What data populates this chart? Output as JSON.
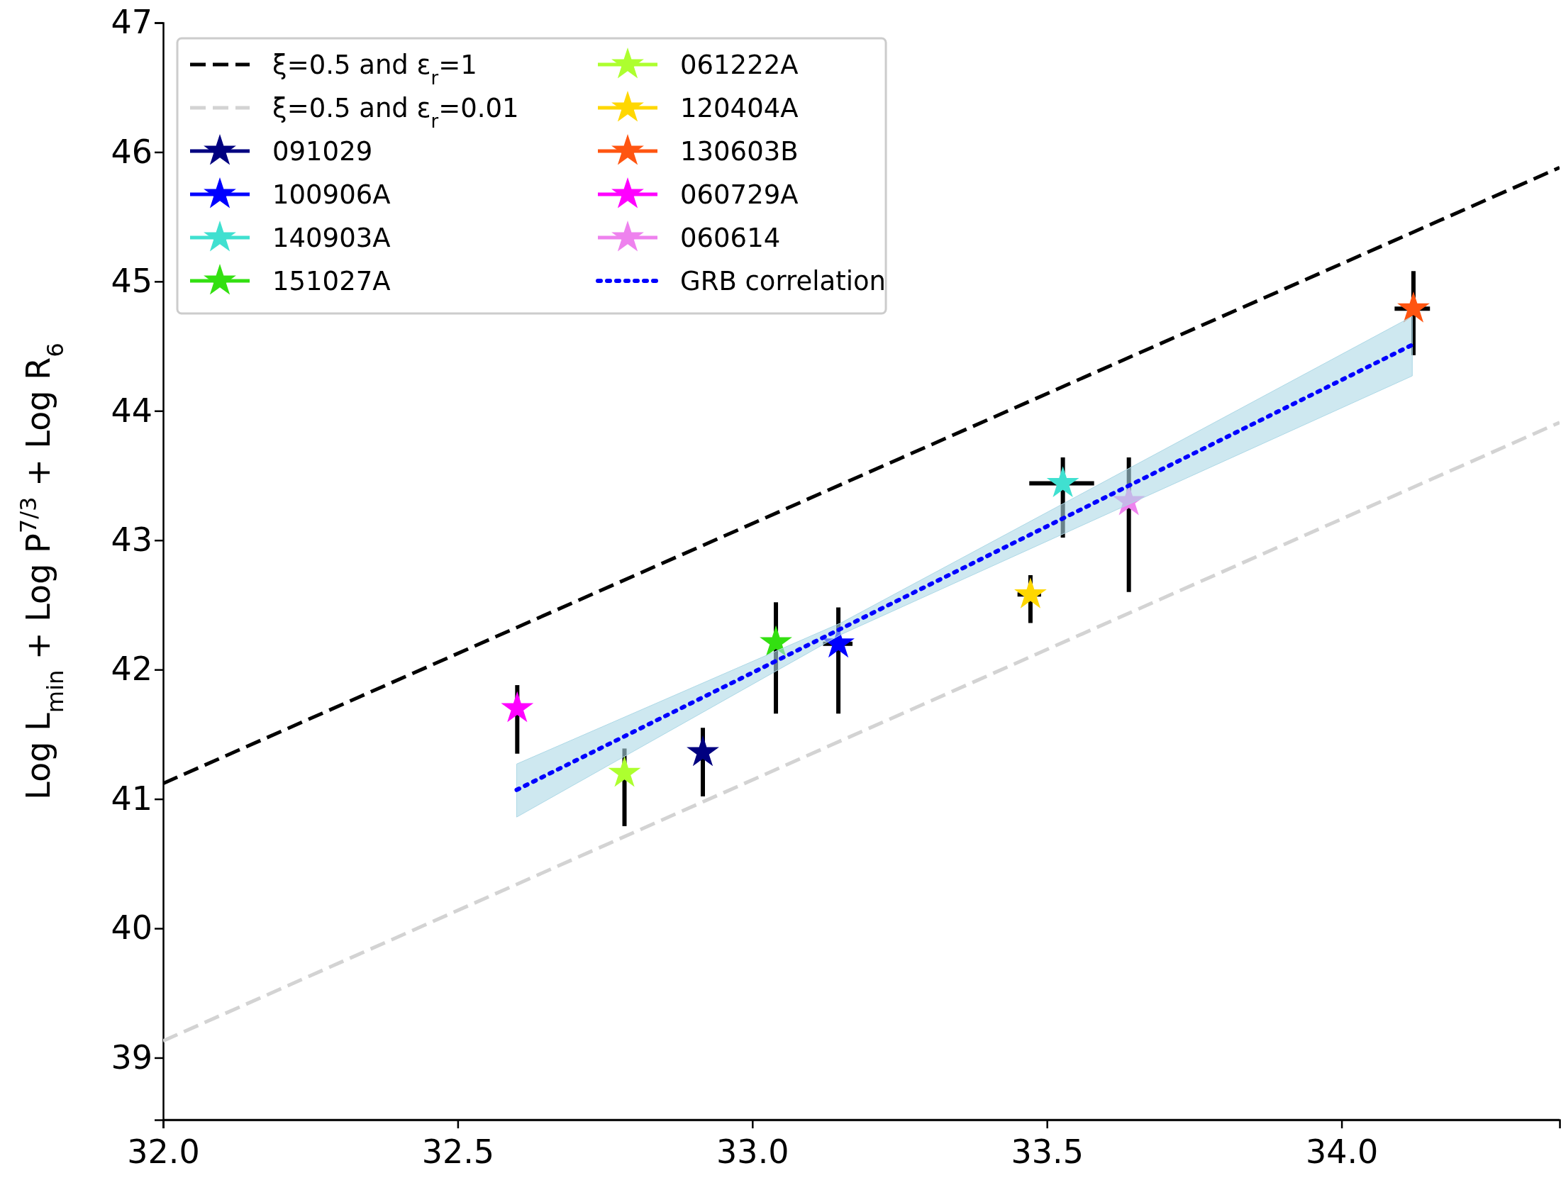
{
  "chart_data": {
    "type": "scatter",
    "ylabel": "Log L$_{min}$ + Log P$^{7/3}$ + Log R$_{6}$",
    "xlim": [
      32.0,
      34.37
    ],
    "ylim": [
      38.52,
      47
    ],
    "xticks": [
      {
        "value": 32,
        "label": "32.0"
      },
      {
        "value": 32.5,
        "label": "32.5"
      },
      {
        "value": 33,
        "label": "33.0"
      },
      {
        "value": 33.5,
        "label": "33.5"
      },
      {
        "value": 34,
        "label": "34.0"
      }
    ],
    "yticks": [
      39,
      40,
      41,
      42,
      43,
      44,
      45,
      46,
      47
    ],
    "legend": "top left",
    "series": [
      {
        "name": "ξ=0.5 and ε$_{r}$=1",
        "type": "line",
        "color": "#000000",
        "line_style": "dashed",
        "marker": "none",
        "x": [
          32.0,
          34.37
        ],
        "values": [
          41.12,
          45.88
        ]
      },
      {
        "name": "ξ=0.5 and ε$_{r}$=0.01",
        "type": "line",
        "color": "#d3d3d3",
        "line_style": "dashed",
        "marker": "none",
        "x": [
          32.0,
          34.37
        ],
        "values": [
          39.13,
          43.91
        ]
      },
      {
        "name": "091029",
        "type": "scatter",
        "marker": "star",
        "color": "#000080",
        "x": [
          32.916
        ],
        "values": [
          41.36
        ],
        "errors": [
          [
            41.02,
            41.55
          ]
        ]
      },
      {
        "name": "100906A",
        "type": "scatter",
        "marker": "star",
        "color": "#0000ff",
        "x": [
          33.146
        ],
        "values": [
          42.2
        ],
        "errors": [
          [
            41.66,
            42.48
          ]
        ],
        "xerrors": [
          [
            33.12,
            33.17
          ]
        ]
      },
      {
        "name": "140903A",
        "type": "scatter",
        "marker": "star",
        "color": "#40e0d0",
        "x": [
          33.527
        ],
        "values": [
          43.44
        ],
        "errors": [
          [
            43.02,
            43.64
          ]
        ],
        "xerrors": [
          [
            33.47,
            33.58
          ]
        ]
      },
      {
        "name": "151027A",
        "type": "scatter",
        "marker": "star",
        "color": "#33e011",
        "x": [
          33.04
        ],
        "values": [
          42.21
        ],
        "errors": [
          [
            41.66,
            42.52
          ]
        ]
      },
      {
        "name": "061222A",
        "type": "scatter",
        "marker": "star",
        "color": "#adff2f",
        "x": [
          32.783
        ],
        "values": [
          41.2
        ],
        "errors": [
          [
            40.79,
            41.39
          ]
        ]
      },
      {
        "name": "120404A",
        "type": "scatter",
        "marker": "star",
        "color": "#ffd700",
        "x": [
          33.472
        ],
        "values": [
          42.58
        ],
        "errors": [
          [
            42.36,
            42.73
          ]
        ],
        "xerrors": [
          [
            33.45,
            33.49
          ]
        ]
      },
      {
        "name": "130603B",
        "type": "scatter",
        "marker": "star",
        "color": "#ff5511",
        "x": [
          34.122
        ],
        "values": [
          44.79
        ],
        "errors": [
          [
            44.43,
            45.08
          ]
        ],
        "xerrors": [
          [
            34.09,
            34.15
          ]
        ]
      },
      {
        "name": "060729A",
        "type": "scatter",
        "marker": "star",
        "color": "#ff00ff",
        "x": [
          32.601
        ],
        "values": [
          41.7
        ],
        "errors": [
          [
            41.35,
            41.88
          ]
        ]
      },
      {
        "name": "060614",
        "type": "scatter",
        "marker": "star",
        "color": "#ee82ee",
        "x": [
          33.639
        ],
        "values": [
          43.3
        ],
        "errors": [
          [
            42.6,
            43.64
          ]
        ]
      },
      {
        "name": "GRB correlation",
        "type": "line",
        "color": "#0000ff",
        "line_style": "dotted",
        "marker": "none",
        "x": [
          32.6,
          33.15,
          34.12
        ],
        "values": [
          41.07,
          42.315,
          44.51
        ],
        "lower": [
          40.86,
          42.27,
          44.27
        ],
        "upper": [
          41.27,
          42.36,
          44.73
        ]
      }
    ]
  }
}
